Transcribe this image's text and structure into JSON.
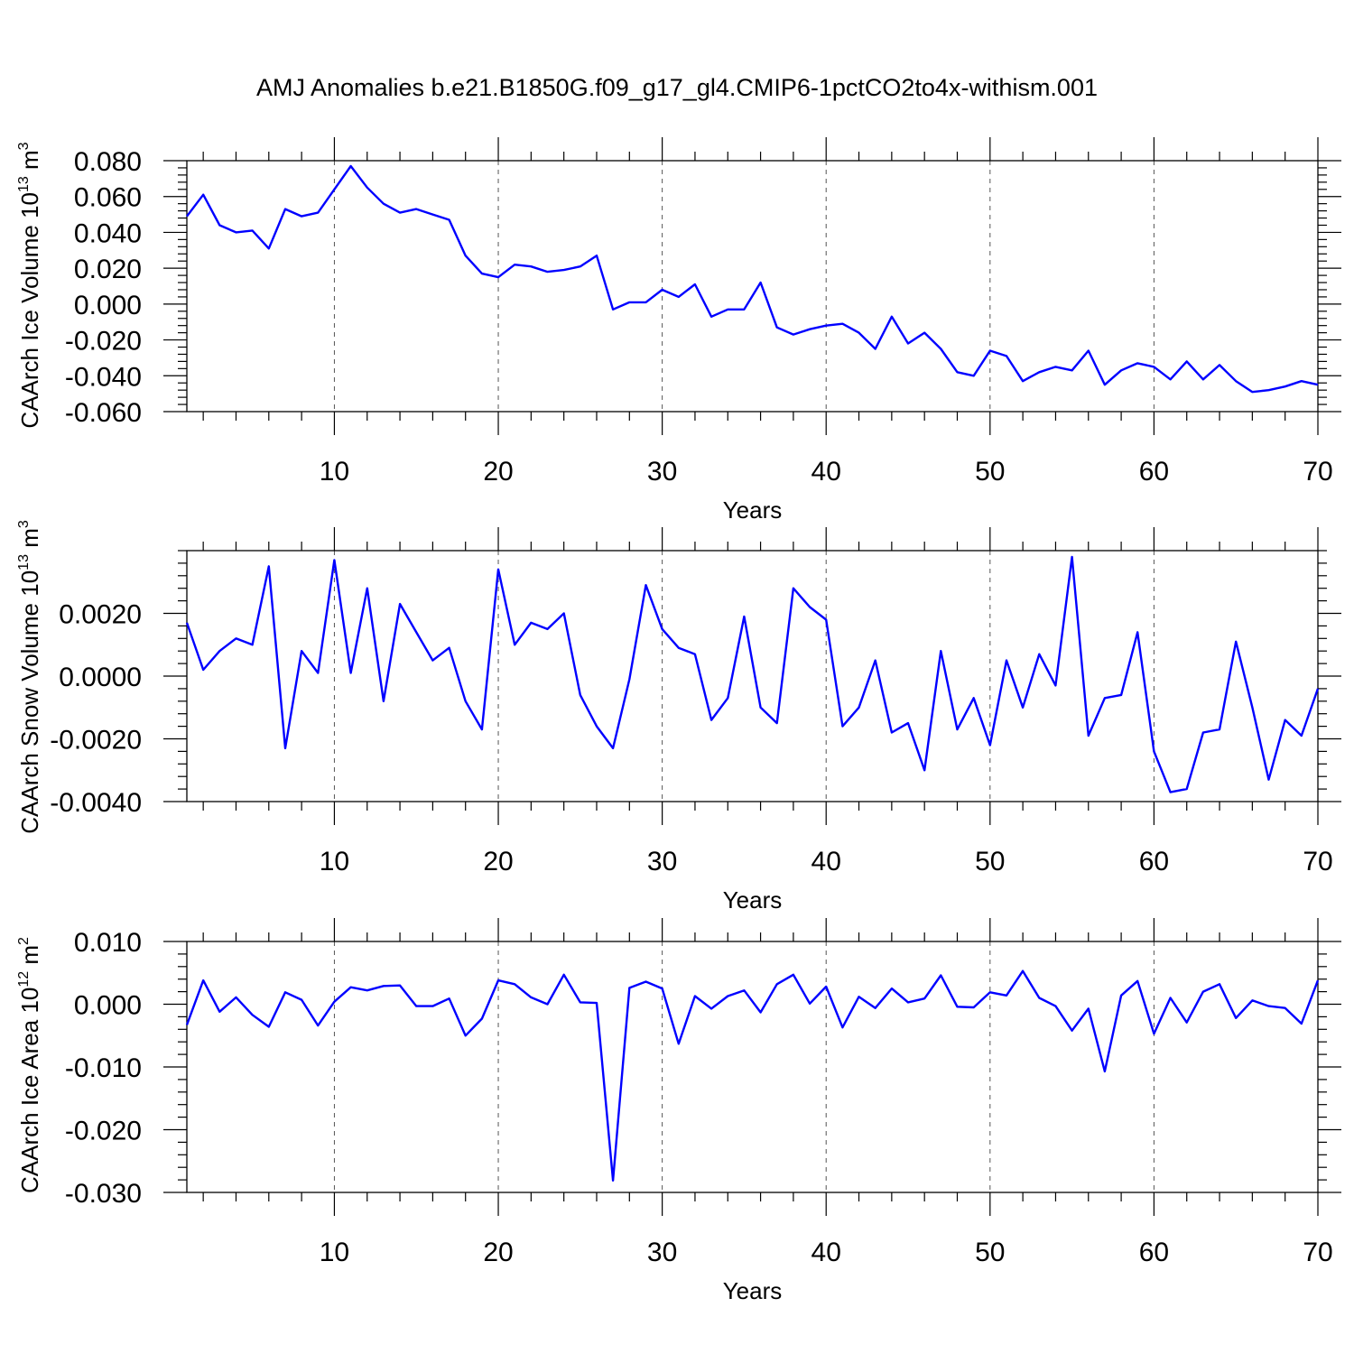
{
  "title": "AMJ Anomalies b.e21.B1850G.f09_g17_gl4.CMIP6-1pctCO2to4x-withism.001",
  "chart_data": [
    {
      "type": "line",
      "ylabel": "CAArch Ice Volume 10",
      "ylabel_sup1": "13",
      "ylabel_unit": " m",
      "ylabel_sup2": "3",
      "xlabel": "Years",
      "xlim": [
        1,
        70
      ],
      "ylim": [
        -0.06,
        0.08
      ],
      "xticks": [
        10,
        20,
        30,
        40,
        50,
        60,
        70
      ],
      "yticks": [
        -0.06,
        -0.04,
        -0.02,
        0.0,
        0.02,
        0.04,
        0.06,
        0.08
      ],
      "ytick_labels": [
        "-0.060",
        "-0.040",
        "-0.020",
        "0.000",
        "0.020",
        "0.040",
        "0.060",
        "0.080"
      ],
      "grid": "vertical-dashed",
      "color": "#0000ff",
      "x_start": 1,
      "values": [
        0.049,
        0.061,
        0.044,
        0.04,
        0.041,
        0.031,
        0.053,
        0.049,
        0.051,
        0.064,
        0.077,
        0.065,
        0.056,
        0.051,
        0.053,
        0.05,
        0.047,
        0.027,
        0.017,
        0.015,
        0.022,
        0.021,
        0.018,
        0.019,
        0.021,
        0.027,
        -0.003,
        0.001,
        0.001,
        0.008,
        0.004,
        0.011,
        -0.007,
        -0.003,
        -0.003,
        0.012,
        -0.013,
        -0.017,
        -0.014,
        -0.012,
        -0.011,
        -0.016,
        -0.025,
        -0.007,
        -0.022,
        -0.016,
        -0.025,
        -0.038,
        -0.04,
        -0.026,
        -0.029,
        -0.043,
        -0.038,
        -0.035,
        -0.037,
        -0.026,
        -0.045,
        -0.037,
        -0.033,
        -0.035,
        -0.042,
        -0.032,
        -0.042,
        -0.034,
        -0.043,
        -0.049,
        -0.048,
        -0.046,
        -0.043,
        -0.045
      ]
    },
    {
      "type": "line",
      "ylabel": "CAArch Snow Volume 10",
      "ylabel_sup1": "13",
      "ylabel_unit": " m",
      "ylabel_sup2": "3",
      "xlabel": "Years",
      "xlim": [
        1,
        70
      ],
      "ylim": [
        -0.004,
        0.004
      ],
      "xticks": [
        10,
        20,
        30,
        40,
        50,
        60,
        70
      ],
      "yticks": [
        -0.004,
        -0.002,
        0.0,
        0.002
      ],
      "ytick_labels": [
        "-0.0040",
        "-0.0020",
        "0.0000",
        "0.0020"
      ],
      "grid": "vertical-dashed",
      "color": "#0000ff",
      "x_start": 1,
      "values": [
        0.0017,
        0.0002,
        0.0008,
        0.0012,
        0.001,
        0.0035,
        -0.0023,
        0.0008,
        0.0001,
        0.0037,
        0.0001,
        0.0028,
        -0.0008,
        0.0023,
        0.0014,
        0.0005,
        0.0009,
        -0.0008,
        -0.0017,
        0.0034,
        0.001,
        0.0017,
        0.0015,
        0.002,
        -0.0006,
        -0.0016,
        -0.0023,
        -0.0001,
        0.0029,
        0.0015,
        0.0009,
        0.0007,
        -0.0014,
        -0.0007,
        0.0019,
        -0.001,
        -0.0015,
        0.0028,
        0.0022,
        0.0018,
        -0.0016,
        -0.001,
        0.0005,
        -0.0018,
        -0.0015,
        -0.003,
        0.0008,
        -0.0017,
        -0.0007,
        -0.0022,
        0.0005,
        -0.001,
        0.0007,
        -0.0003,
        0.0038,
        -0.0019,
        -0.0007,
        -0.0006,
        0.0014,
        -0.0024,
        -0.0037,
        -0.0036,
        -0.0018,
        -0.0017,
        0.0011,
        -0.001,
        -0.0033,
        -0.0014,
        -0.0019,
        -0.0004
      ]
    },
    {
      "type": "line",
      "ylabel": "CAArch Ice Area 10",
      "ylabel_sup1": "12",
      "ylabel_unit": " m",
      "ylabel_sup2": "2",
      "xlabel": "Years",
      "xlim": [
        1,
        70
      ],
      "ylim": [
        -0.03,
        0.01
      ],
      "xticks": [
        10,
        20,
        30,
        40,
        50,
        60,
        70
      ],
      "yticks": [
        -0.03,
        -0.02,
        -0.01,
        0.0,
        0.01
      ],
      "ytick_labels": [
        "-0.030",
        "-0.020",
        "-0.010",
        "0.000",
        "0.010"
      ],
      "grid": "vertical-dashed",
      "color": "#0000ff",
      "x_start": 1,
      "values": [
        -0.0033,
        0.0038,
        -0.0012,
        0.0011,
        -0.0017,
        -0.0036,
        0.0019,
        0.0007,
        -0.0034,
        0.0004,
        0.0027,
        0.0022,
        0.0029,
        0.003,
        -0.0003,
        -0.0003,
        0.0009,
        -0.005,
        -0.0023,
        0.0038,
        0.0032,
        0.0011,
        0.0,
        0.0047,
        0.0003,
        0.0002,
        -0.0281,
        0.0026,
        0.0036,
        0.0025,
        -0.0063,
        0.0013,
        -0.0007,
        0.0013,
        0.0022,
        -0.0013,
        0.0032,
        0.0047,
        0.0001,
        0.0028,
        -0.0037,
        0.0012,
        -0.0006,
        0.0025,
        0.0003,
        0.0009,
        0.0046,
        -0.0004,
        -0.0005,
        0.0019,
        0.0014,
        0.0053,
        0.001,
        -0.0003,
        -0.0042,
        -0.0007,
        -0.0107,
        0.0014,
        0.0037,
        -0.0047,
        0.001,
        -0.0029,
        0.002,
        0.0032,
        -0.0022,
        0.0006,
        -0.0003,
        -0.0006,
        -0.0031,
        0.0038
      ]
    }
  ]
}
